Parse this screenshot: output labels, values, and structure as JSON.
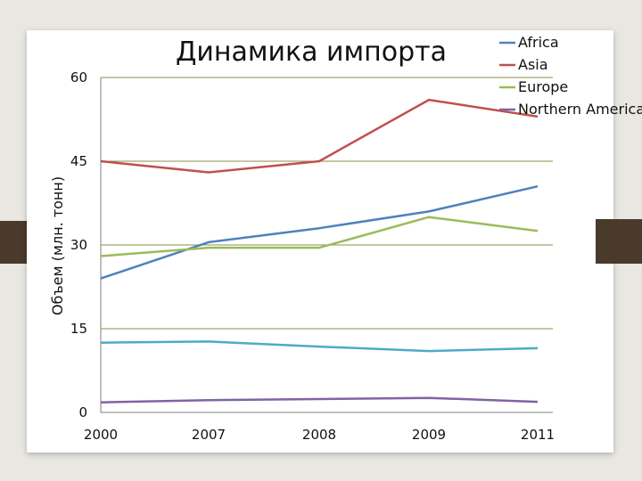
{
  "chart_data": {
    "type": "line",
    "title": "Динамика импорта",
    "ylabel": "Объем (млн. тонн)",
    "xlabel": "",
    "categories": [
      "2000",
      "2007",
      "2008",
      "2009",
      "2011"
    ],
    "ylim": [
      0,
      60
    ],
    "yticks": [
      "0",
      "15",
      "30",
      "45",
      "60"
    ],
    "grid": true,
    "legend_position": "top-right",
    "series": [
      {
        "name": "Africa",
        "color": "#4f81bd",
        "values": [
          24,
          30.5,
          33,
          36,
          40.5
        ]
      },
      {
        "name": "Asia",
        "color": "#c0504d",
        "values": [
          45,
          43,
          45,
          56,
          53
        ]
      },
      {
        "name": "Europe",
        "color": "#9bbb59",
        "values": [
          28,
          29.5,
          29.5,
          35,
          32.5
        ]
      },
      {
        "name": "Northern America",
        "color": "#8064a2",
        "values": [
          1.8,
          2.2,
          2.4,
          2.6,
          1.9
        ]
      },
      {
        "color": "#4bacc6",
        "values": [
          12.5,
          12.7,
          11.8,
          11,
          11.5
        ]
      }
    ]
  }
}
